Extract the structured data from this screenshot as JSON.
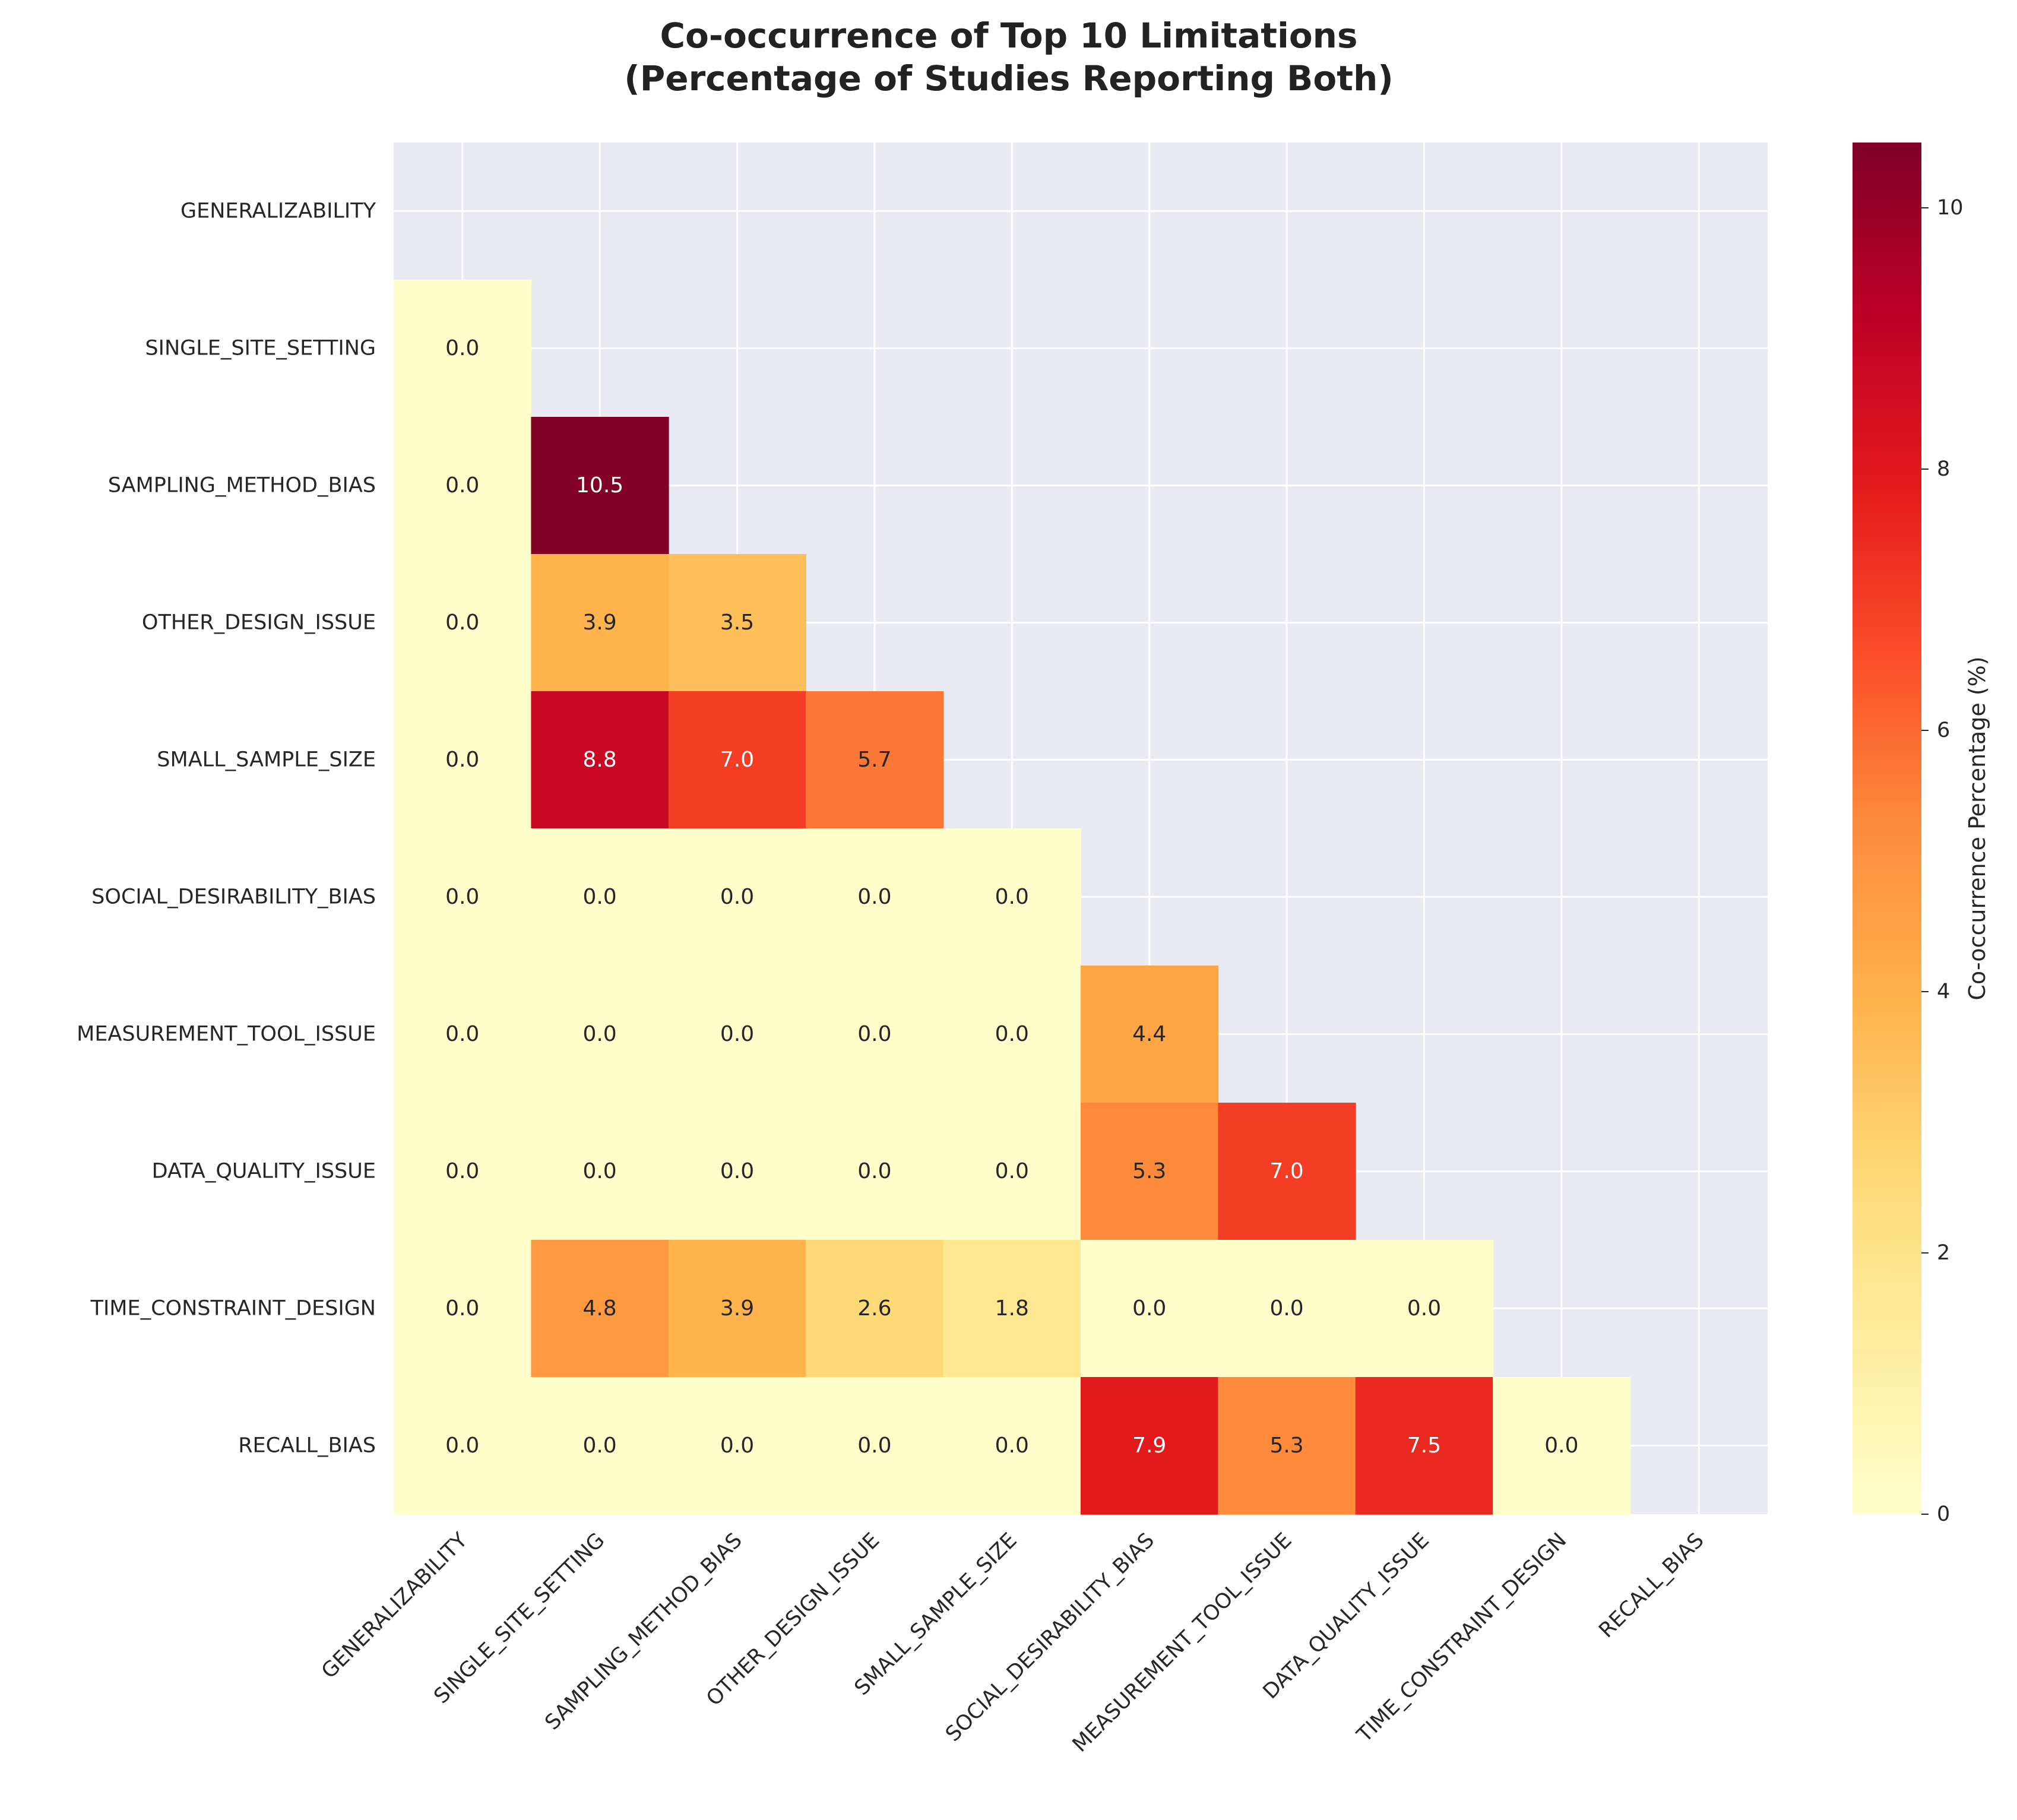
{
  "chart_data": {
    "type": "heatmap",
    "title_lines": [
      "Co-occurrence of Top 10 Limitations",
      "(Percentage of Studies Reporting Both)"
    ],
    "row_labels": [
      "GENERALIZABILITY",
      "SINGLE_SITE_SETTING",
      "SAMPLING_METHOD_BIAS",
      "OTHER_DESIGN_ISSUE",
      "SMALL_SAMPLE_SIZE",
      "SOCIAL_DESIRABILITY_BIAS",
      "MEASUREMENT_TOOL_ISSUE",
      "DATA_QUALITY_ISSUE",
      "TIME_CONSTRAINT_DESIGN",
      "RECALL_BIAS"
    ],
    "col_labels": [
      "GENERALIZABILITY",
      "SINGLE_SITE_SETTING",
      "SAMPLING_METHOD_BIAS",
      "OTHER_DESIGN_ISSUE",
      "SMALL_SAMPLE_SIZE",
      "SOCIAL_DESIRABILITY_BIAS",
      "MEASUREMENT_TOOL_ISSUE",
      "DATA_QUALITY_ISSUE",
      "TIME_CONSTRAINT_DESIGN",
      "RECALL_BIAS"
    ],
    "mask": "upper triangle including diagonal",
    "values": [
      [],
      [
        0.0
      ],
      [
        0.0,
        10.5
      ],
      [
        0.0,
        3.9,
        3.5
      ],
      [
        0.0,
        8.8,
        7.0,
        5.7
      ],
      [
        0.0,
        0.0,
        0.0,
        0.0,
        0.0
      ],
      [
        0.0,
        0.0,
        0.0,
        0.0,
        0.0,
        4.4
      ],
      [
        0.0,
        0.0,
        0.0,
        0.0,
        0.0,
        5.3,
        7.0
      ],
      [
        0.0,
        4.8,
        3.9,
        2.6,
        1.8,
        0.0,
        0.0,
        0.0
      ],
      [
        0.0,
        0.0,
        0.0,
        0.0,
        0.0,
        7.9,
        5.3,
        7.5,
        0.0
      ]
    ],
    "colormap": "YlOrRd",
    "value_range": [
      0,
      10.5
    ],
    "colorbar": {
      "label": "Co-occurrence Percentage (%)",
      "ticks": [
        0,
        2,
        4,
        6,
        8,
        10
      ]
    },
    "grid": true,
    "background_color": "#eaeaf2"
  }
}
